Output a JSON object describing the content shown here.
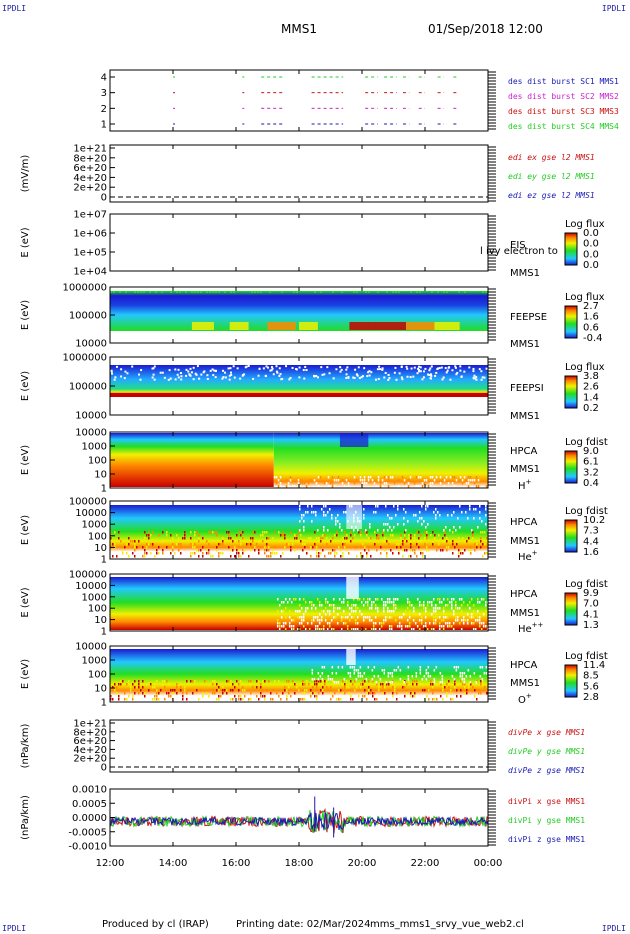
{
  "corners": {
    "tl": "IPDLI",
    "tr": "IPDLI",
    "bl": "IPDLI",
    "br": "IPDLI"
  },
  "header": {
    "mission": "MMS1",
    "datetime": "01/Sep/2018 12:00"
  },
  "footer": {
    "produced": "Produced by cl (IRAP)",
    "printed": "Printing date: 02/Mar/2024",
    "script": "mms_mms1_srvy_vue_web2.cl"
  },
  "colors": {
    "c_blue": "#1a1ab4",
    "c_magenta": "#cc22cc",
    "c_red": "#cc1111",
    "c_green": "#22cc22",
    "spec_red": "#c80000",
    "spec_orange": "#ff8800",
    "spec_yellow": "#f0f000",
    "spec_green": "#22dd22",
    "spec_cyan": "#22c8ff",
    "spec_blue": "#1a1ad2"
  },
  "chart_data": {
    "type": "heatmap",
    "x_ticks": [
      "12:00",
      "14:00",
      "16:00",
      "18:00",
      "20:00",
      "22:00",
      "00:00"
    ],
    "panels": [
      {
        "id": "burst",
        "type": "scatter",
        "ytick_labels": [
          "1",
          "2",
          "3",
          "4"
        ],
        "ylabel": "",
        "legend": [
          "des dist burst SC1 MMS1",
          "des dist burst SC2 MMS2",
          "des dist burst SC3 MMS3",
          "des dist burst SC4 MMS4"
        ],
        "intervals": [
          [
            14.0,
            14.05
          ],
          [
            16.2,
            16.25
          ],
          [
            16.8,
            17.5
          ],
          [
            18.4,
            19.4
          ],
          [
            20.1,
            20.5
          ],
          [
            20.7,
            21.1
          ],
          [
            21.3,
            21.5
          ],
          [
            21.8,
            22.0
          ],
          [
            22.4,
            22.6
          ],
          [
            22.9,
            23.0
          ]
        ]
      },
      {
        "id": "edi",
        "type": "line",
        "ylabel": "(mV/m)",
        "ytick_labels": [
          "1e+21",
          "8e+20",
          "6e+20",
          "4e+20",
          "2e+20",
          "0"
        ],
        "legend": [
          "edi ex gse l2 MMS1",
          "edi ey gse l2 MMS1",
          "edi ez gse l2 MMS1"
        ]
      },
      {
        "id": "eis",
        "type": "heatmap",
        "ylabel": "E (eV)",
        "ytick_labels": [
          "1e+07",
          "1e+06",
          "1e+05",
          "1e+04"
        ],
        "name": "EIS",
        "sub": "MMS1",
        "overlay": "l ivy electron to",
        "cbar_title": "Log flux",
        "cbar_ticks": [
          "0.0",
          "0.0",
          "0.0",
          "0.0"
        ]
      },
      {
        "id": "feepse",
        "type": "heatmap",
        "ylabel": "E (eV)",
        "ytick_labels": [
          "1000000",
          "100000",
          "10000"
        ],
        "name": "FEEPSE",
        "sub": "MMS1",
        "cbar_title": "Log flux",
        "cbar_ticks": [
          "2.7",
          "1.6",
          "0.6",
          "-0.4"
        ]
      },
      {
        "id": "feepsi",
        "type": "heatmap",
        "ylabel": "E (eV)",
        "ytick_labels": [
          "1000000",
          "100000",
          "10000"
        ],
        "name": "FEEPSI",
        "sub": "MMS1",
        "cbar_title": "Log flux",
        "cbar_ticks": [
          "3.8",
          "2.6",
          "1.4",
          "0.2"
        ]
      },
      {
        "id": "hpca_h",
        "type": "heatmap",
        "ylabel": "E (eV)",
        "ytick_labels": [
          "10000",
          "1000",
          "100",
          "10",
          "1"
        ],
        "name": "HPCA",
        "sub": "MMS1",
        "species": "H",
        "charge": "+",
        "cbar_title": "Log fdist",
        "cbar_ticks": [
          "9.0",
          "6.1",
          "3.2",
          "0.4"
        ]
      },
      {
        "id": "hpca_he",
        "type": "heatmap",
        "ylabel": "E (eV)",
        "ytick_labels": [
          "100000",
          "10000",
          "1000",
          "100",
          "10",
          "1"
        ],
        "name": "HPCA",
        "sub": "MMS1",
        "species": "He",
        "charge": "+",
        "cbar_title": "Log fdist",
        "cbar_ticks": [
          "10.2",
          "7.3",
          "4.4",
          "1.6"
        ]
      },
      {
        "id": "hpca_he2",
        "type": "heatmap",
        "ylabel": "E (eV)",
        "ytick_labels": [
          "100000",
          "10000",
          "1000",
          "100",
          "10",
          "1"
        ],
        "name": "HPCA",
        "sub": "MMS1",
        "species": "He",
        "charge": "++",
        "cbar_title": "Log fdist",
        "cbar_ticks": [
          "9.9",
          "7.0",
          "4.1",
          "1.3"
        ]
      },
      {
        "id": "hpca_o",
        "type": "heatmap",
        "ylabel": "E (eV)",
        "ytick_labels": [
          "10000",
          "1000",
          "100",
          "10",
          "1"
        ],
        "name": "HPCA",
        "sub": "MMS1",
        "species": "O",
        "charge": "+",
        "cbar_title": "Log fdist",
        "cbar_ticks": [
          "11.4",
          "8.5",
          "5.6",
          "2.8"
        ]
      },
      {
        "id": "divpe",
        "type": "line",
        "ylabel": "(nPa/km)",
        "ytick_labels": [
          "1e+21",
          "8e+20",
          "6e+20",
          "4e+20",
          "2e+20",
          "0"
        ],
        "legend": [
          "divPe x gse MMS1",
          "divPe y gse MMS1",
          "divPe z gse MMS1"
        ]
      },
      {
        "id": "divpi",
        "type": "line",
        "ylabel": "(nPa/km)",
        "ytick_labels": [
          "0.0010",
          "0.0005",
          "0.0000",
          "-0.0005",
          "-0.0010"
        ],
        "legend": [
          "divPi x gse MMS1",
          "divPi y gse MMS1",
          "divPi z gse MMS1"
        ]
      }
    ]
  }
}
